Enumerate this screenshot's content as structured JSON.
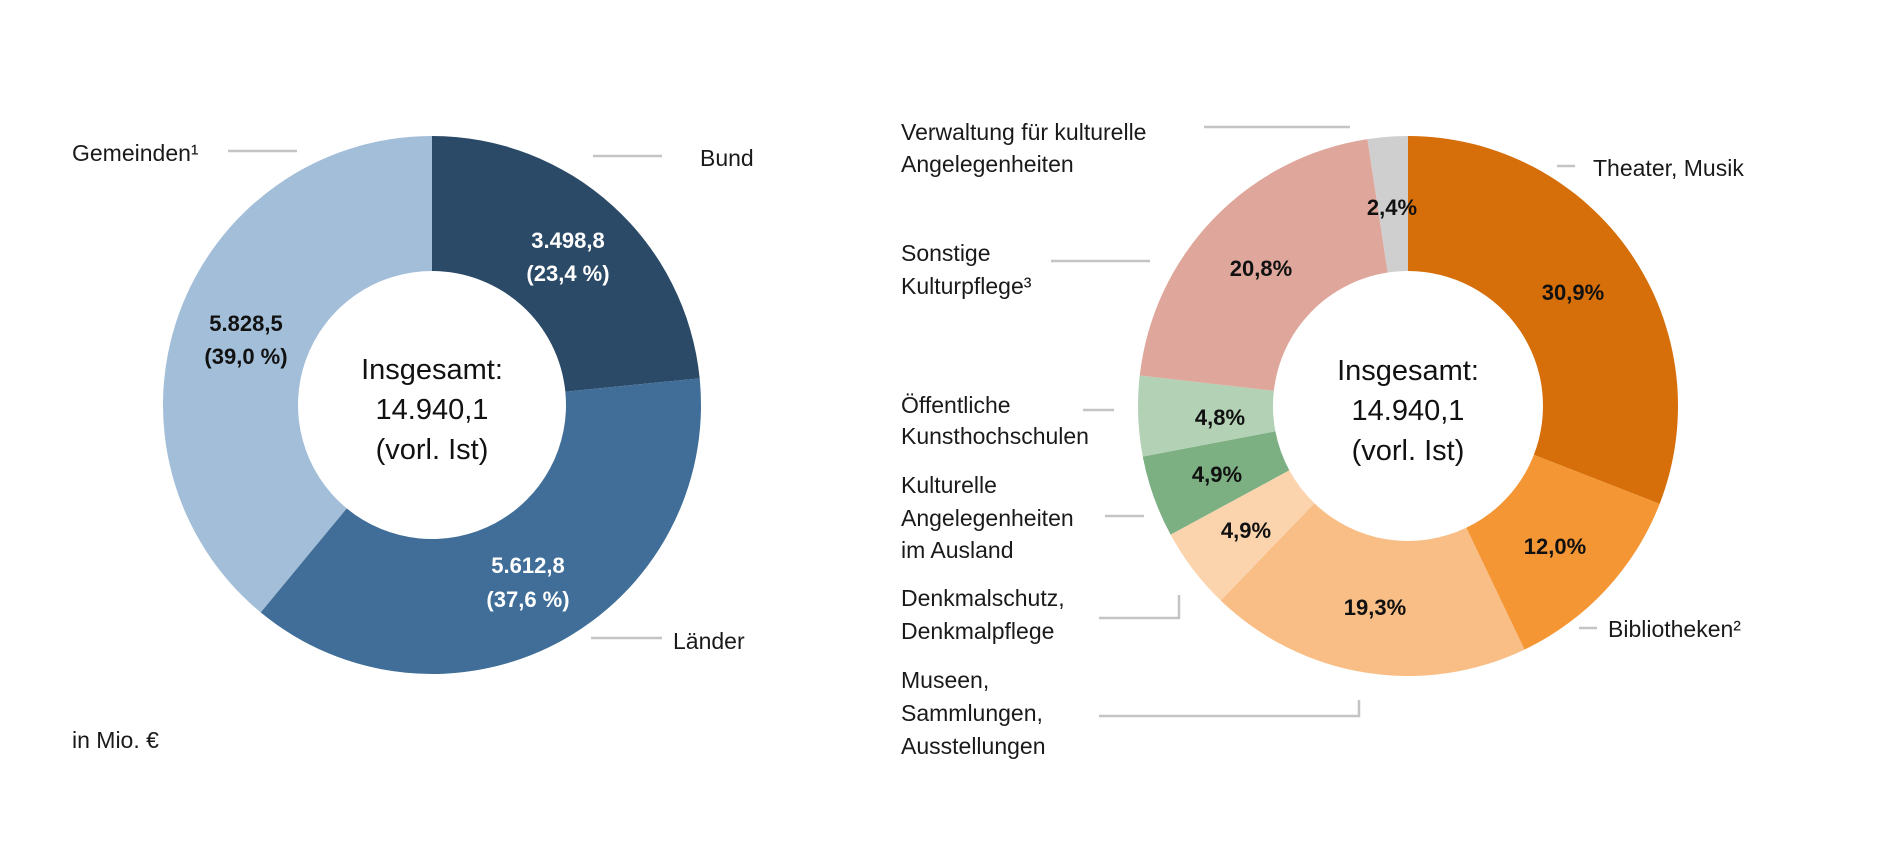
{
  "chart_data": [
    {
      "type": "pie",
      "donut": true,
      "unit_note": "in Mio. €",
      "center_text": [
        "Insgesamt:",
        "14.940,1",
        "(vorl. Ist)"
      ],
      "slices": [
        {
          "name": "Bund",
          "value": 3498.8,
          "value_label": "3.498,8",
          "percent": 23.4,
          "percent_label": "(23,4 %)",
          "color": "#2b4a67",
          "label_color": "#ffffff"
        },
        {
          "name": "Länder",
          "value": 5612.8,
          "value_label": "5.612,8",
          "percent": 37.6,
          "percent_label": "(37,6 %)",
          "color": "#406e98",
          "label_color": "#ffffff"
        },
        {
          "name": "Gemeinden¹",
          "value": 5828.5,
          "value_label": "5.828,5",
          "percent": 39.0,
          "percent_label": "(39,0 %)",
          "color": "#a3bed8",
          "label_color": "#111111"
        }
      ]
    },
    {
      "type": "pie",
      "donut": true,
      "center_text": [
        "Insgesamt:",
        "14.940,1",
        "(vorl. Ist)"
      ],
      "slices": [
        {
          "name": [
            "Theater, Musik"
          ],
          "percent": 30.9,
          "percent_label": "30,9%",
          "color": "#d66e0a"
        },
        {
          "name": [
            "Bibliotheken²"
          ],
          "percent": 12.0,
          "percent_label": "12,0%",
          "color": "#f59634"
        },
        {
          "name": [
            "Museen,",
            "Sammlungen,",
            "Ausstellungen"
          ],
          "percent": 19.3,
          "percent_label": "19,3%",
          "color": "#f8be85"
        },
        {
          "name": [
            "Denkmalschutz,",
            "Denkmalpflege"
          ],
          "percent": 4.9,
          "percent_label": "4,9%",
          "color": "#fbd4ad"
        },
        {
          "name": [
            "Kulturelle",
            "Angelegenheiten",
            "im Ausland"
          ],
          "percent": 4.9,
          "percent_label": "4,9%",
          "color": "#7caf82"
        },
        {
          "name": [
            "Öffentliche",
            "Kunsthochschulen"
          ],
          "percent": 4.8,
          "percent_label": "4,8%",
          "color": "#b2d1b5"
        },
        {
          "name": [
            "Sonstige",
            "Kulturpflege³"
          ],
          "percent": 20.8,
          "percent_label": "20,8%",
          "color": "#dfa79b"
        },
        {
          "name": [
            "Verwaltung für kulturelle",
            "Angelegenheiten"
          ],
          "percent": 2.4,
          "percent_label": "2,4%",
          "color": "#d0cfd0"
        }
      ]
    }
  ]
}
